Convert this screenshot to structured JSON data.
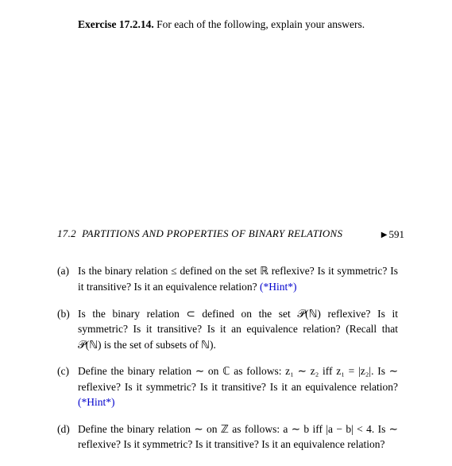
{
  "exercise": {
    "number": "Exercise 17.2.14.",
    "intro": "For each of the following, explain your answers."
  },
  "section": {
    "number": "17.2",
    "title": "PARTITIONS AND PROPERTIES OF BINARY RELATIONS",
    "page": "591"
  },
  "items": {
    "a": {
      "label": "(a)",
      "text_pre": "Is the binary relation ≤ defined on the set ℝ reflexive? Is it symmetric? Is it transitive? Is it an equivalence relation?  ",
      "hint": "(*Hint*)"
    },
    "b": {
      "label": "(b)",
      "text": "Is the binary relation ⊂ defined on the set 𝒫(ℕ) reflexive? Is it symmetric? Is it transitive? Is it an equivalence relation? (Recall that 𝒫(ℕ) is the set of subsets of ℕ)."
    },
    "c": {
      "label": "(c)",
      "text_pre": "Define the binary relation ∼ on ℂ as follows: z₁ ∼ z₂ iff z₁ = |z₂|. Is ∼ reflexive? Is it symmetric? Is it transitive? Is it an equivalence relation? ",
      "hint": "(*Hint*)"
    },
    "d": {
      "label": "(d)",
      "text": "Define the binary relation ∼ on ℤ as follows: a ∼ b iff |a − b| < 4. Is ∼ reflexive? Is it symmetric? Is it transitive? Is it an equivalence relation?"
    }
  }
}
